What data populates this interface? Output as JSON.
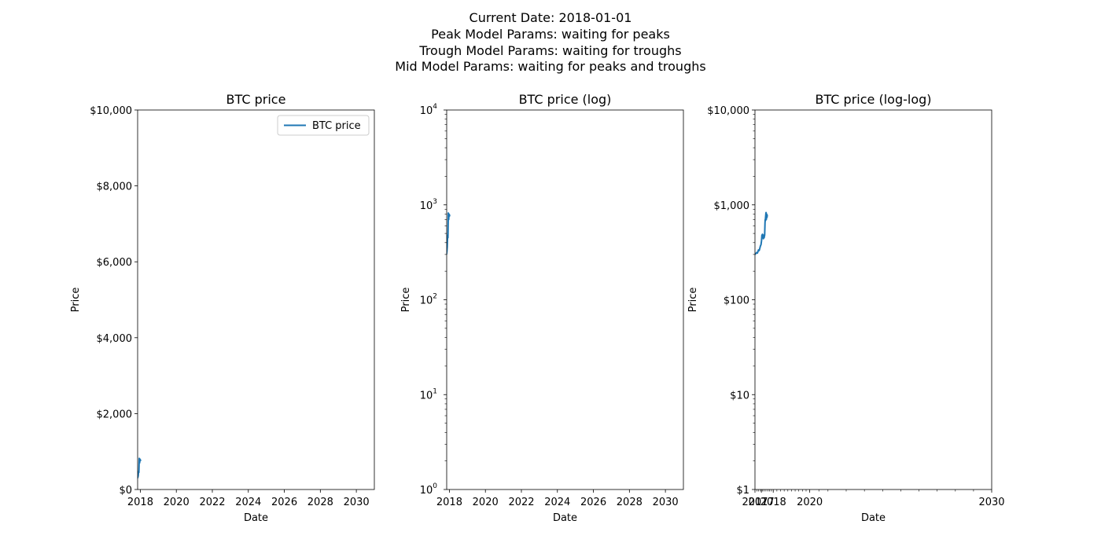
{
  "suptitle": [
    "Current Date: 2018-01-01",
    "Peak Model Params: waiting for peaks",
    "Trough Model Params: waiting for troughs",
    "Mid Model Params: waiting for peaks and troughs"
  ],
  "colors": {
    "series": "#1f77b4",
    "axis": "#000000",
    "background": "#ffffff"
  },
  "chart_data": [
    {
      "type": "line",
      "title": "BTC price",
      "xlabel": "Date",
      "ylabel": "Price",
      "xscale": "linear",
      "yscale": "linear",
      "xlim": [
        2017.85,
        2031.0
      ],
      "ylim": [
        0,
        10000
      ],
      "xticks": [
        {
          "value": 2018,
          "label": "2018"
        },
        {
          "value": 2020,
          "label": "2020"
        },
        {
          "value": 2022,
          "label": "2022"
        },
        {
          "value": 2024,
          "label": "2024"
        },
        {
          "value": 2026,
          "label": "2026"
        },
        {
          "value": 2028,
          "label": "2028"
        },
        {
          "value": 2030,
          "label": "2030"
        }
      ],
      "yticks": [
        {
          "value": 0,
          "label": "$0"
        },
        {
          "value": 2000,
          "label": "$2,000"
        },
        {
          "value": 4000,
          "label": "$4,000"
        },
        {
          "value": 6000,
          "label": "$6,000"
        },
        {
          "value": 8000,
          "label": "$8,000"
        },
        {
          "value": 10000,
          "label": "$10,000"
        }
      ],
      "legend": {
        "entries": [
          "BTC price"
        ],
        "location": "upper right"
      },
      "series": [
        {
          "name": "BTC price",
          "x": [
            2017.84,
            2017.86,
            2017.88,
            2017.9,
            2017.92,
            2017.94,
            2017.96,
            2017.98,
            2018.0,
            2018.02
          ],
          "values": [
            300,
            320,
            360,
            480,
            450,
            820,
            700,
            800,
            760,
            790
          ]
        }
      ]
    },
    {
      "type": "line",
      "title": "BTC price (log)",
      "xlabel": "Date",
      "ylabel": "Price",
      "xscale": "linear",
      "yscale": "log",
      "xlim": [
        2017.85,
        2031.0
      ],
      "ylim": [
        1,
        10000
      ],
      "xticks": [
        {
          "value": 2018,
          "label": "2018"
        },
        {
          "value": 2020,
          "label": "2020"
        },
        {
          "value": 2022,
          "label": "2022"
        },
        {
          "value": 2024,
          "label": "2024"
        },
        {
          "value": 2026,
          "label": "2026"
        },
        {
          "value": 2028,
          "label": "2028"
        },
        {
          "value": 2030,
          "label": "2030"
        }
      ],
      "yticks": [
        {
          "value": 1,
          "base": "10",
          "exp": "0"
        },
        {
          "value": 10,
          "base": "10",
          "exp": "1"
        },
        {
          "value": 100,
          "base": "10",
          "exp": "2"
        },
        {
          "value": 1000,
          "base": "10",
          "exp": "3"
        },
        {
          "value": 10000,
          "base": "10",
          "exp": "4"
        }
      ],
      "series": [
        {
          "name": "BTC price",
          "x": [
            2017.84,
            2017.86,
            2017.88,
            2017.9,
            2017.92,
            2017.94,
            2017.96,
            2017.98,
            2018.0,
            2018.02
          ],
          "values": [
            300,
            320,
            360,
            480,
            450,
            820,
            700,
            800,
            760,
            790
          ]
        }
      ]
    },
    {
      "type": "line",
      "title": "BTC price (log-log)",
      "xlabel": "Date",
      "ylabel": "Price",
      "xscale": "log",
      "yscale": "log",
      "xlim": [
        2017,
        2030
      ],
      "ylim": [
        1,
        10000
      ],
      "xticks": [
        {
          "value": 2017,
          "label": "2017"
        },
        {
          "value": 2017.35,
          "label": "2017"
        },
        {
          "value": 2018,
          "label": "2018"
        },
        {
          "value": 2020,
          "label": "2020"
        },
        {
          "value": 2030,
          "label": "2030"
        }
      ],
      "yticks": [
        {
          "value": 1,
          "label": "$1"
        },
        {
          "value": 10,
          "label": "$10"
        },
        {
          "value": 100,
          "label": "$100"
        },
        {
          "value": 1000,
          "label": "$1,000"
        },
        {
          "value": 10000,
          "label": "$10,000"
        }
      ],
      "series": [
        {
          "name": "BTC price",
          "x": [
            2017.0,
            2017.1,
            2017.13,
            2017.16,
            2017.19,
            2017.23,
            2017.25,
            2017.3,
            2017.33,
            2017.36,
            2017.38,
            2017.4,
            2017.41,
            2017.42,
            2017.44,
            2017.45,
            2017.46,
            2017.48,
            2017.5,
            2017.52,
            2017.53,
            2017.55,
            2017.56,
            2017.57,
            2017.575,
            2017.6,
            2017.61,
            2017.62,
            2017.625,
            2017.63,
            2017.64,
            2017.65,
            2017.655,
            2017.66,
            2017.67,
            2017.675
          ],
          "values": [
            300,
            315,
            310,
            320,
            335,
            330,
            340,
            370,
            380,
            420,
            480,
            470,
            490,
            450,
            470,
            480,
            440,
            480,
            450,
            470,
            480,
            650,
            700,
            680,
            720,
            820,
            830,
            700,
            760,
            720,
            800,
            780,
            760,
            740,
            780,
            770
          ]
        }
      ]
    }
  ]
}
